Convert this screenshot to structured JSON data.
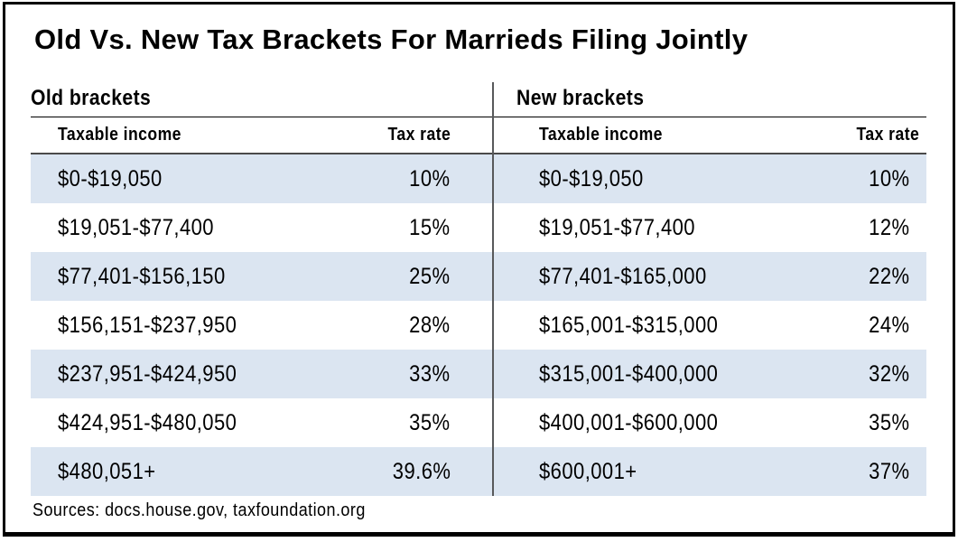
{
  "title": "Old Vs. New Tax Brackets For Marrieds Filing Jointly",
  "source_line": "Sources: docs.house.gov, taxfoundation.org",
  "colors": {
    "row_highlight": "#dbe5f1",
    "divider": "#58595b",
    "rule": "#4a4a4a",
    "border": "#000000",
    "text": "#000000",
    "background": "#ffffff"
  },
  "chart_data": {
    "type": "table",
    "title": "Old Vs. New Tax Brackets For Marrieds Filing Jointly",
    "source": "Sources: docs.house.gov, taxfoundation.org",
    "layout": "two tables side by side separated by vertical divider; alternating light-blue row bands continuous across both tables",
    "tables": [
      {
        "name": "Old brackets",
        "columns": [
          "Taxable income",
          "Tax rate"
        ],
        "rows": [
          [
            "$0-$19,050",
            "10%"
          ],
          [
            "$19,051-$77,400",
            "15%"
          ],
          [
            "$77,401-$156,150",
            "25%"
          ],
          [
            "$156,151-$237,950",
            "28%"
          ],
          [
            "$237,951-$424,950",
            "33%"
          ],
          [
            "$424,951-$480,050",
            "35%"
          ],
          [
            "$480,051+",
            "39.6%"
          ]
        ]
      },
      {
        "name": "New brackets",
        "columns": [
          "Taxable income",
          "Tax rate"
        ],
        "rows": [
          [
            "$0-$19,050",
            "10%"
          ],
          [
            "$19,051-$77,400",
            "12%"
          ],
          [
            "$77,401-$165,000",
            "22%"
          ],
          [
            "$165,001-$315,000",
            "24%"
          ],
          [
            "$315,001-$400,000",
            "32%"
          ],
          [
            "$400,001-$600,000",
            "35%"
          ],
          [
            "$600,001+",
            "37%"
          ]
        ]
      }
    ]
  }
}
